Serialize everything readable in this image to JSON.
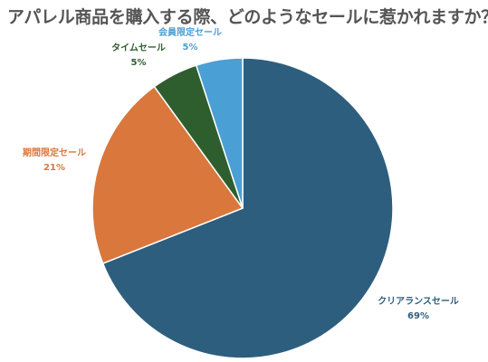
{
  "chart_data": {
    "type": "pie",
    "title": "アパレル商品を購入する際、どのようなセールに惹かれますか？",
    "slices": [
      {
        "label": "クリアランスセール",
        "value": 69,
        "value_label": "69%",
        "color": "#2e5e7e"
      },
      {
        "label": "期間限定セール",
        "value": 21,
        "value_label": "21%",
        "color": "#d9773d"
      },
      {
        "label": "タイムセール",
        "value": 5,
        "value_label": "5%",
        "color": "#2f5e2e"
      },
      {
        "label": "会員限定セール",
        "value": 5,
        "value_label": "5%",
        "color": "#4a9fd5"
      }
    ],
    "start_angle": "12 o'clock",
    "direction": "clockwise",
    "legend": "none"
  }
}
